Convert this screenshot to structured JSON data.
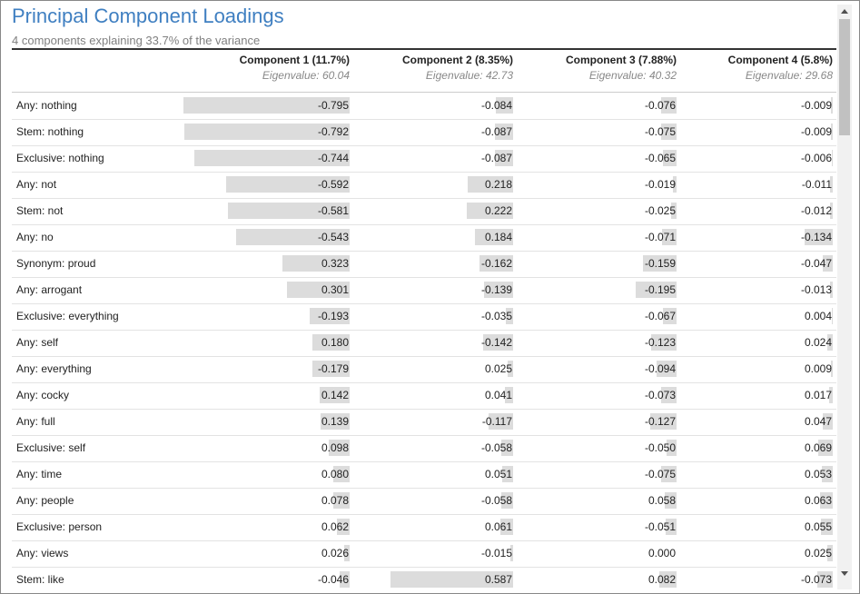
{
  "header": {
    "title": "Principal Component Loadings",
    "subtitle": "4 components explaining 33.7% of the variance"
  },
  "table": {
    "columns": [
      {
        "name": "Component 1 (11.7%)",
        "eigenvalue": "Eigenvalue: 60.04"
      },
      {
        "name": "Component 2 (8.35%)",
        "eigenvalue": "Eigenvalue: 42.73"
      },
      {
        "name": "Component 3 (7.88%)",
        "eigenvalue": "Eigenvalue: 40.32"
      },
      {
        "name": "Component 4 (5.8%)",
        "eigenvalue": "Eigenvalue: 29.68"
      }
    ],
    "rows": [
      {
        "label": "Any: nothing",
        "values": [
          "-0.795",
          "-0.084",
          "-0.076",
          "-0.009"
        ]
      },
      {
        "label": "Stem: nothing",
        "values": [
          "-0.792",
          "-0.087",
          "-0.075",
          "-0.009"
        ]
      },
      {
        "label": "Exclusive: nothing",
        "values": [
          "-0.744",
          "-0.087",
          "-0.065",
          "-0.006"
        ]
      },
      {
        "label": "Any: not",
        "values": [
          "-0.592",
          "0.218",
          "-0.019",
          "-0.011"
        ]
      },
      {
        "label": "Stem: not",
        "values": [
          "-0.581",
          "0.222",
          "-0.025",
          "-0.012"
        ]
      },
      {
        "label": "Any: no",
        "values": [
          "-0.543",
          "0.184",
          "-0.071",
          "-0.134"
        ]
      },
      {
        "label": "Synonym: proud",
        "values": [
          "0.323",
          "-0.162",
          "-0.159",
          "-0.047"
        ]
      },
      {
        "label": "Any: arrogant",
        "values": [
          "0.301",
          "-0.139",
          "-0.195",
          "-0.013"
        ]
      },
      {
        "label": "Exclusive: everything",
        "values": [
          "-0.193",
          "-0.035",
          "-0.067",
          "0.004"
        ]
      },
      {
        "label": "Any: self",
        "values": [
          "0.180",
          "-0.142",
          "-0.123",
          "0.024"
        ]
      },
      {
        "label": "Any: everything",
        "values": [
          "-0.179",
          "0.025",
          "-0.094",
          "0.009"
        ]
      },
      {
        "label": "Any: cocky",
        "values": [
          "0.142",
          "0.041",
          "-0.073",
          "0.017"
        ]
      },
      {
        "label": "Any: full",
        "values": [
          "0.139",
          "-0.117",
          "-0.127",
          "0.047"
        ]
      },
      {
        "label": "Exclusive: self",
        "values": [
          "0.098",
          "-0.058",
          "-0.050",
          "0.069"
        ]
      },
      {
        "label": "Any: time",
        "values": [
          "0.080",
          "0.051",
          "-0.075",
          "0.053"
        ]
      },
      {
        "label": "Any: people",
        "values": [
          "0.078",
          "-0.058",
          "0.058",
          "0.063"
        ]
      },
      {
        "label": "Exclusive: person",
        "values": [
          "0.062",
          "0.061",
          "-0.051",
          "0.055"
        ]
      },
      {
        "label": "Any: views",
        "values": [
          "0.026",
          "-0.015",
          "0.000",
          "0.025"
        ]
      },
      {
        "label": "Stem: like",
        "values": [
          "-0.046",
          "0.587",
          "0.082",
          "-0.073"
        ]
      }
    ]
  }
}
